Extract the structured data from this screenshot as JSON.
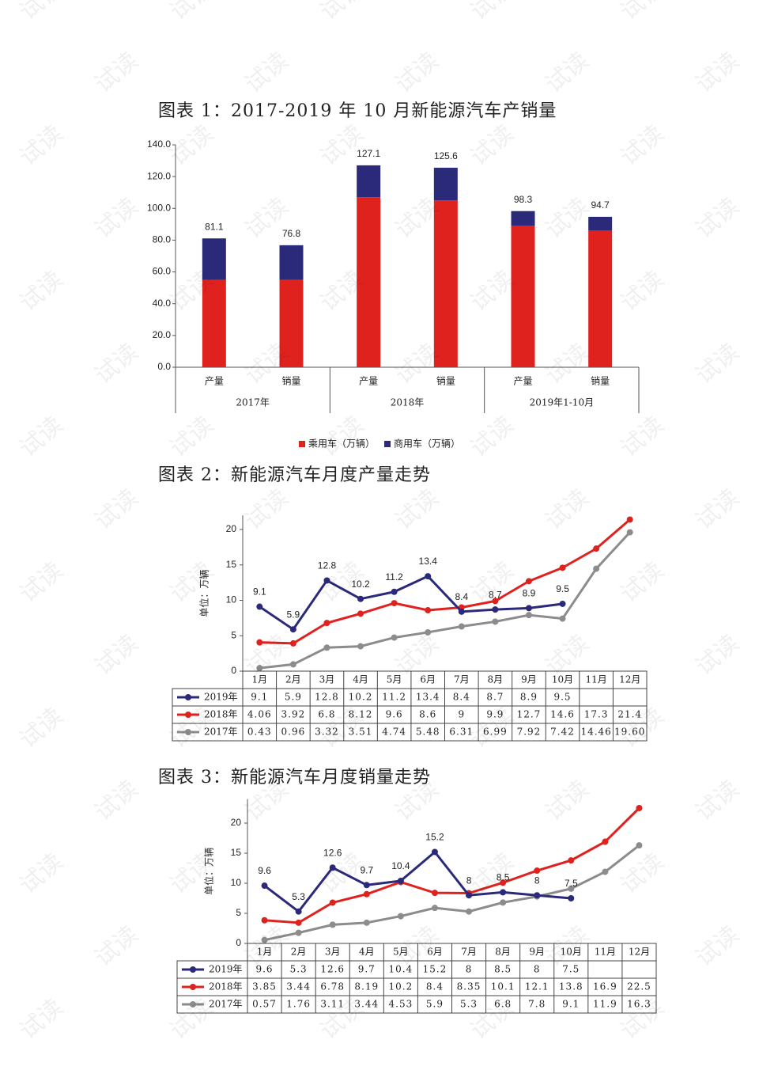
{
  "watermark": "试读",
  "chart_data": [
    {
      "type": "stacked-bar",
      "title": "图表 1：2017-2019 年 10 月新能源汽车产销量",
      "categories": [
        "产量",
        "销量",
        "产量",
        "销量",
        "产量",
        "销量"
      ],
      "groups": [
        "2017年",
        "2018年",
        "2019年1-10月"
      ],
      "series": [
        {
          "name": "乘用车（万辆）",
          "color": "#e0221f",
          "values": [
            55,
            55,
            107,
            105,
            89,
            86
          ]
        },
        {
          "name": "商用车（万辆）",
          "color": "#2b2a7a",
          "values": [
            26.1,
            21.8,
            20.1,
            20.6,
            9.3,
            8.7
          ]
        }
      ],
      "totals": [
        81.1,
        76.8,
        127.1,
        125.6,
        98.3,
        94.7
      ],
      "ylim": [
        0,
        140
      ],
      "yticks": [
        {
          "value": 0,
          "label": "0.0"
        },
        {
          "value": 20,
          "label": "20.0"
        },
        {
          "value": 40,
          "label": "40.0"
        },
        {
          "value": 60,
          "label": "60.0"
        },
        {
          "value": 80,
          "label": "80.0"
        },
        {
          "value": 100,
          "label": "100.0"
        },
        {
          "value": 120,
          "label": "120.0"
        },
        {
          "value": 140,
          "label": "140.0"
        }
      ]
    },
    {
      "type": "line-table",
      "title": "图表 2：新能源汽车月度产量走势",
      "ylabel": "单位：万辆",
      "categories": [
        "1月",
        "2月",
        "3月",
        "4月",
        "5月",
        "6月",
        "7月",
        "8月",
        "9月",
        "10月",
        "11月",
        "12月"
      ],
      "ylim": [
        0,
        22
      ],
      "yticks": [
        0,
        5,
        10,
        15,
        20
      ],
      "series": [
        {
          "name": "2019年",
          "color": "#2b2a7a",
          "data_labels": true,
          "values": [
            9.1,
            5.9,
            12.8,
            10.2,
            11.2,
            13.4,
            8.4,
            8.7,
            8.9,
            9.5,
            null,
            null
          ]
        },
        {
          "name": "2018年",
          "color": "#e0221f",
          "values": [
            4.06,
            3.92,
            6.8,
            8.12,
            9.6,
            8.6,
            9,
            9.9,
            12.7,
            14.6,
            17.3,
            21.4
          ]
        },
        {
          "name": "2017年",
          "color": "#8c8c8c",
          "values": [
            0.43,
            0.96,
            3.32,
            3.51,
            4.74,
            5.48,
            6.31,
            6.99,
            7.92,
            7.42,
            14.46,
            19.6
          ],
          "value_labels": [
            "0.43",
            "0.96",
            "3.32",
            "3.51",
            "4.74",
            "5.48",
            "6.31",
            "6.99",
            "7.92",
            "7.42",
            "14.46",
            "19.60"
          ]
        }
      ]
    },
    {
      "type": "line-table",
      "title": "图表 3：新能源汽车月度销量走势",
      "ylabel": "单位：万辆",
      "categories": [
        "1月",
        "2月",
        "3月",
        "4月",
        "5月",
        "6月",
        "7月",
        "8月",
        "9月",
        "10月",
        "11月",
        "12月"
      ],
      "ylim": [
        0,
        24
      ],
      "yticks": [
        0,
        5,
        10,
        15,
        20
      ],
      "series": [
        {
          "name": "2019年",
          "color": "#2b2a7a",
          "data_labels": true,
          "values": [
            9.6,
            5.3,
            12.6,
            9.7,
            10.4,
            15.2,
            8,
            8.5,
            8,
            7.5,
            null,
            null
          ]
        },
        {
          "name": "2018年",
          "color": "#e0221f",
          "values": [
            3.85,
            3.44,
            6.78,
            8.19,
            10.2,
            8.4,
            8.35,
            10.1,
            12.1,
            13.8,
            16.9,
            22.5
          ]
        },
        {
          "name": "2017年",
          "color": "#8c8c8c",
          "values": [
            0.57,
            1.76,
            3.11,
            3.44,
            4.53,
            5.9,
            5.3,
            6.8,
            7.8,
            9.1,
            11.9,
            16.3
          ]
        }
      ]
    }
  ]
}
